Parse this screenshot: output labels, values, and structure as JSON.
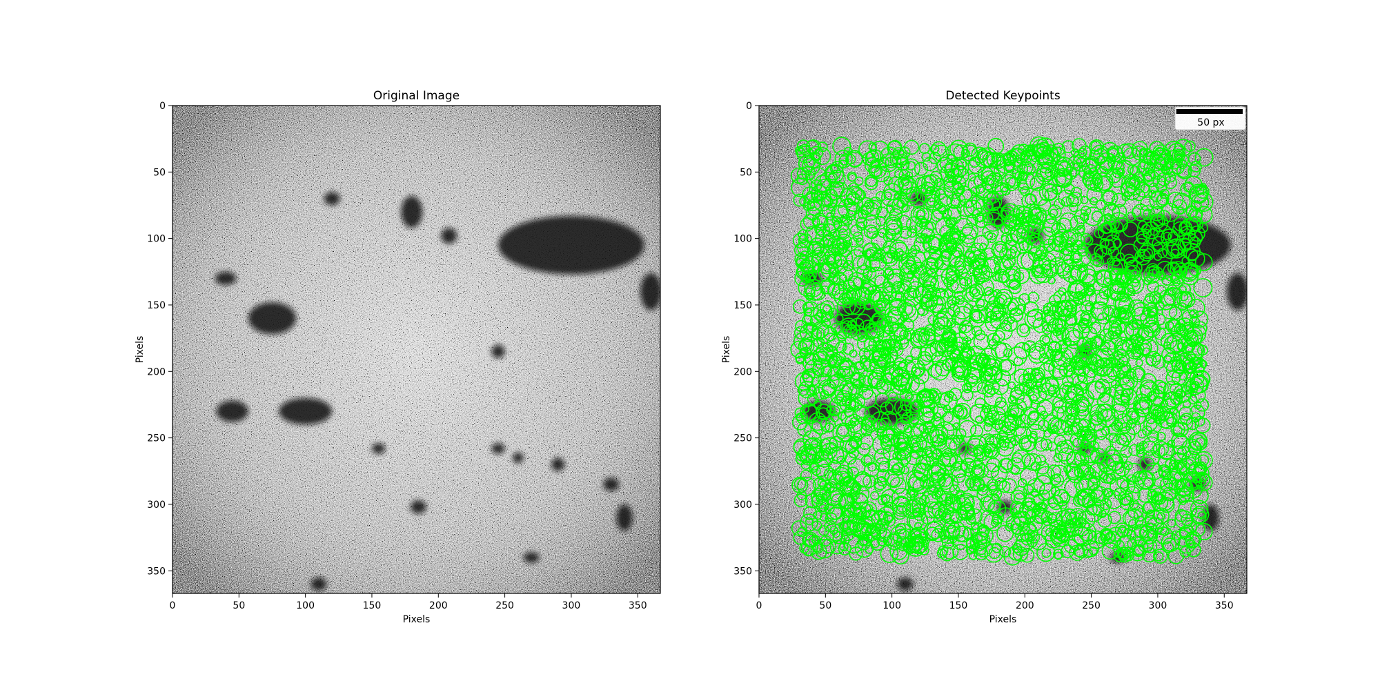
{
  "chart_data": [
    {
      "type": "image",
      "title": "Original Image",
      "xlabel": "Pixels",
      "ylabel": "Pixels",
      "xlim": [
        0,
        367
      ],
      "ylim": [
        367,
        0
      ],
      "xticks": [
        0,
        50,
        100,
        150,
        200,
        250,
        300,
        350
      ],
      "yticks": [
        0,
        50,
        100,
        150,
        200,
        250,
        300,
        350
      ],
      "xtick_labels": [
        "0",
        "50",
        "100",
        "150",
        "200",
        "250",
        "300",
        "350"
      ],
      "ytick_labels": [
        "0",
        "50",
        "100",
        "150",
        "200",
        "250",
        "300",
        "350"
      ],
      "colormap": "gray",
      "dark_regions": [
        {
          "x": 300,
          "y": 105,
          "rx": 55,
          "ry": 22
        },
        {
          "x": 75,
          "y": 160,
          "rx": 18,
          "ry": 12
        },
        {
          "x": 100,
          "y": 230,
          "rx": 20,
          "ry": 10
        },
        {
          "x": 45,
          "y": 230,
          "rx": 12,
          "ry": 8
        },
        {
          "x": 180,
          "y": 80,
          "rx": 8,
          "ry": 12
        },
        {
          "x": 208,
          "y": 98,
          "rx": 6,
          "ry": 6
        },
        {
          "x": 120,
          "y": 70,
          "rx": 6,
          "ry": 5
        },
        {
          "x": 155,
          "y": 258,
          "rx": 5,
          "ry": 4
        },
        {
          "x": 245,
          "y": 258,
          "rx": 5,
          "ry": 4
        },
        {
          "x": 260,
          "y": 265,
          "rx": 4,
          "ry": 4
        },
        {
          "x": 340,
          "y": 310,
          "rx": 6,
          "ry": 10
        },
        {
          "x": 245,
          "y": 185,
          "rx": 5,
          "ry": 5
        },
        {
          "x": 185,
          "y": 302,
          "rx": 6,
          "ry": 5
        },
        {
          "x": 290,
          "y": 270,
          "rx": 5,
          "ry": 5
        },
        {
          "x": 330,
          "y": 285,
          "rx": 6,
          "ry": 5
        },
        {
          "x": 270,
          "y": 340,
          "rx": 6,
          "ry": 4
        },
        {
          "x": 40,
          "y": 130,
          "rx": 8,
          "ry": 5
        },
        {
          "x": 110,
          "y": 360,
          "rx": 6,
          "ry": 5
        },
        {
          "x": 360,
          "y": 140,
          "rx": 8,
          "ry": 14
        }
      ]
    },
    {
      "type": "image",
      "title": "Detected Keypoints",
      "xlabel": "Pixels",
      "ylabel": "Pixels",
      "xlim": [
        0,
        367
      ],
      "ylim": [
        367,
        0
      ],
      "xticks": [
        0,
        50,
        100,
        150,
        200,
        250,
        300,
        350
      ],
      "yticks": [
        0,
        50,
        100,
        150,
        200,
        250,
        300,
        350
      ],
      "xtick_labels": [
        "0",
        "50",
        "100",
        "150",
        "200",
        "250",
        "300",
        "350"
      ],
      "ytick_labels": [
        "0",
        "50",
        "100",
        "150",
        "200",
        "250",
        "300",
        "350"
      ],
      "colormap": "gray",
      "scalebar": {
        "length": 50,
        "label": "50 px",
        "location": "upper right"
      },
      "keypoints": {
        "color": "#00ff00",
        "marker": "circle",
        "count_estimate": 3000,
        "region_x": [
          30,
          335
        ],
        "region_y": [
          30,
          340
        ]
      }
    }
  ]
}
